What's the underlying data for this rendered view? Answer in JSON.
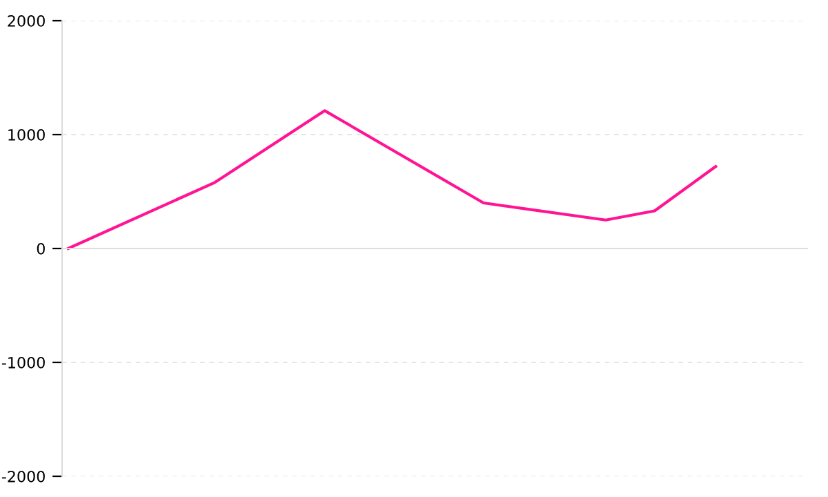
{
  "chart_data": {
    "type": "line",
    "categories": [
      null,
      null,
      null,
      null,
      null,
      null,
      null,
      null,
      null,
      null,
      null,
      null,
      null,
      null,
      null,
      null,
      null,
      null,
      null,
      null,
      null,
      null,
      null,
      null,
      null,
      null,
      null,
      null,
      null,
      null,
      null,
      null,
      null,
      null,
      null,
      null,
      null,
      null,
      null,
      null,
      null,
      null,
      null,
      null,
      null,
      null,
      null,
      null,
      null,
      null,
      null,
      null,
      null,
      null,
      null,
      null,
      null,
      null,
      null,
      null,
      null
    ],
    "values": [
      0,
      null,
      null,
      null,
      null,
      null,
      null,
      null,
      null,
      null,
      null,
      null,
      580,
      null,
      null,
      null,
      null,
      null,
      null,
      null,
      null,
      1210,
      null,
      null,
      null,
      null,
      null,
      null,
      null,
      null,
      null,
      null,
      null,
      null,
      400,
      null,
      null,
      null,
      null,
      null,
      null,
      null,
      null,
      null,
      250,
      null,
      null,
      null,
      330,
      null,
      null,
      null,
      null,
      720,
      null,
      null,
      null,
      null,
      null,
      null,
      null
    ],
    "color": "#ff1493",
    "ylim": [
      -2000,
      2000
    ],
    "yticks": [
      -2000,
      -1000,
      0,
      1000,
      2000
    ],
    "grid": "y",
    "marker": "none",
    "line_style": "solid"
  }
}
